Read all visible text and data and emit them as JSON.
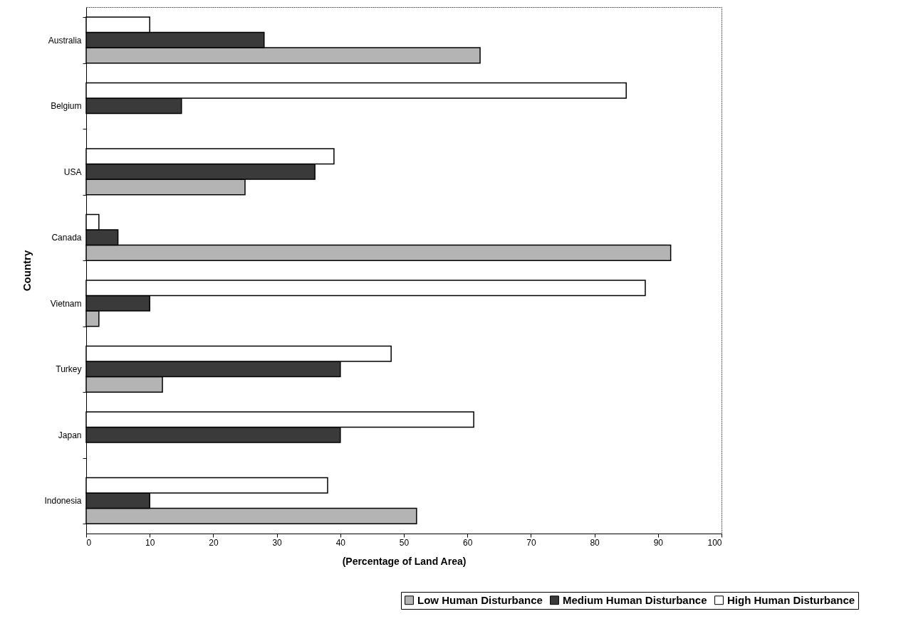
{
  "chart_data": {
    "type": "bar",
    "orientation": "horizontal",
    "xlabel": "(Percentage of Land Area)",
    "ylabel": "Country",
    "categories": [
      "Australia",
      "Belgium",
      "USA",
      "Canada",
      "Vietnam",
      "Turkey",
      "Japan",
      "Indonesia"
    ],
    "series": [
      {
        "name": "Low Human Disturbance",
        "color": "#b4b4b4",
        "values": [
          62,
          null,
          25,
          92,
          2,
          12,
          null,
          52
        ]
      },
      {
        "name": "Medium Human Disturbance",
        "color": "#3a3a3a",
        "values": [
          28,
          15,
          36,
          5,
          10,
          40,
          40,
          10
        ]
      },
      {
        "name": "High Human Disturbance",
        "color": "#ffffff",
        "values": [
          10,
          85,
          39,
          2,
          88,
          48,
          61,
          38
        ]
      }
    ],
    "xlim": [
      0,
      100
    ],
    "xticks": [
      0,
      10,
      20,
      30,
      40,
      50,
      60,
      70,
      80,
      90,
      100
    ],
    "grid": false,
    "legend": "bottom right"
  }
}
